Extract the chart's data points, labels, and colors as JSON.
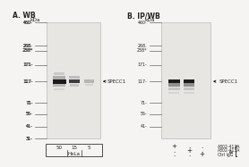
{
  "panel_A_title": "A. WB",
  "panel_B_title": "B. IP/WB",
  "kda_label": "kDa",
  "mw_markers_A": [
    460,
    268,
    238,
    171,
    117,
    71,
    55,
    41,
    31
  ],
  "mw_markers_B": [
    460,
    268,
    238,
    171,
    117,
    71,
    55,
    41
  ],
  "panel_A_lanes": [
    "50",
    "15",
    "5"
  ],
  "panel_A_sublabel": "HeLa",
  "panel_B_dots": [
    [
      "+",
      ".",
      "+"
    ],
    [
      ".",
      "+",
      "+"
    ],
    [
      ".",
      ".",
      "+"
    ]
  ],
  "panel_B_row_labels": [
    "A302-412A",
    "A302-413A",
    "Ctrl IgG"
  ],
  "panel_B_col_label": "IP",
  "specc1_label": "SPECC1",
  "outer_bg": "#f5f4f2",
  "gel_bg": "#e8e6e3",
  "gel_edge": "#bbbbbb",
  "band_dark": "#1c1c1c",
  "band_mid": "#4a4a4a",
  "band_light": "#909090",
  "band_faint": "#c0c0c0",
  "text_color": "#222222",
  "tick_color": "#555555"
}
